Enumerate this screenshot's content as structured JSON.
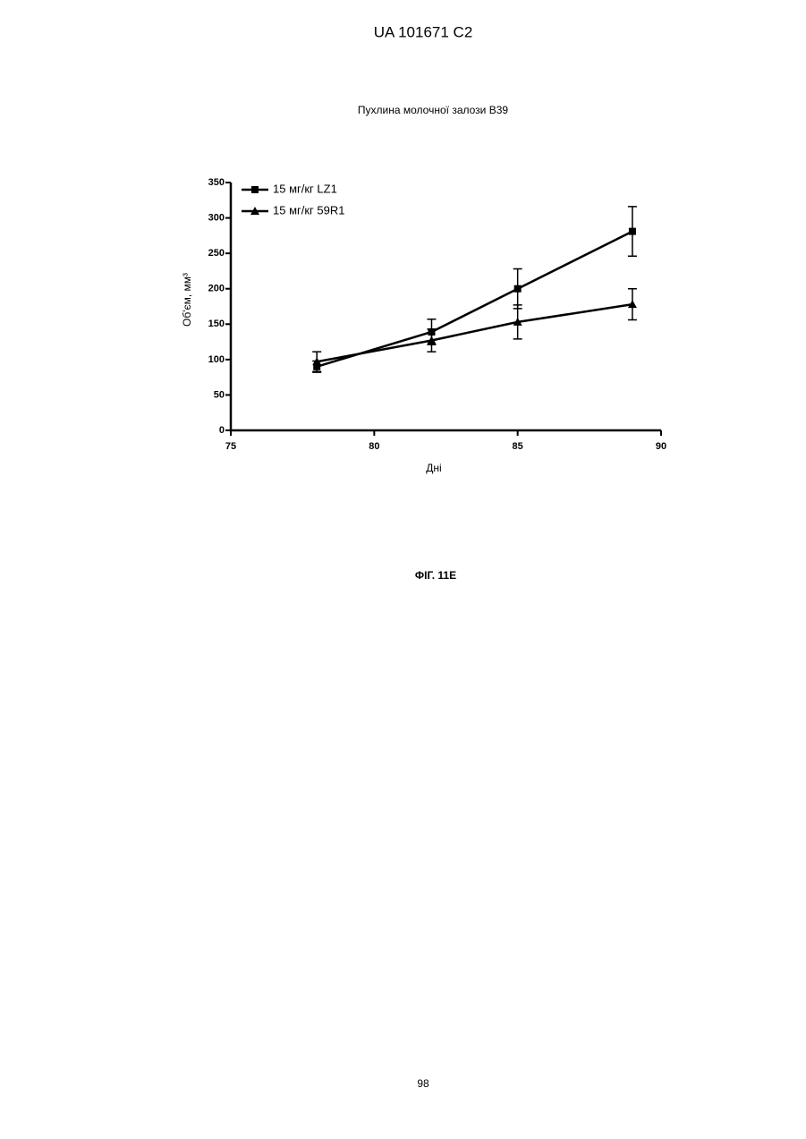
{
  "header": "UA   101671   C2",
  "chart_data": {
    "type": "line",
    "title": "Пухлина молочної залози B39",
    "x_label": "Дні",
    "y_label": "Об'єм, мм³",
    "x": [
      78,
      82,
      85,
      89
    ],
    "series": [
      {
        "name": "15 мг/кг LZ1",
        "color": "#000000",
        "marker": "square",
        "values": [
          90,
          139,
          200,
          281
        ],
        "errors": [
          8,
          18,
          28,
          35
        ]
      },
      {
        "name": "15 мг/кг 59R1",
        "color": "#000000",
        "marker": "triangle",
        "values": [
          97,
          127,
          153,
          178
        ],
        "errors": [
          14,
          16,
          24,
          22
        ]
      }
    ],
    "xlim": [
      75,
      90
    ],
    "xticks": [
      75,
      80,
      85,
      90
    ],
    "ylim": [
      0,
      350
    ],
    "yticks": [
      0,
      50,
      100,
      150,
      200,
      250,
      300,
      350
    ],
    "legend": "upper left"
  },
  "caption": "ФІГ. 11Е",
  "page_number": "98"
}
